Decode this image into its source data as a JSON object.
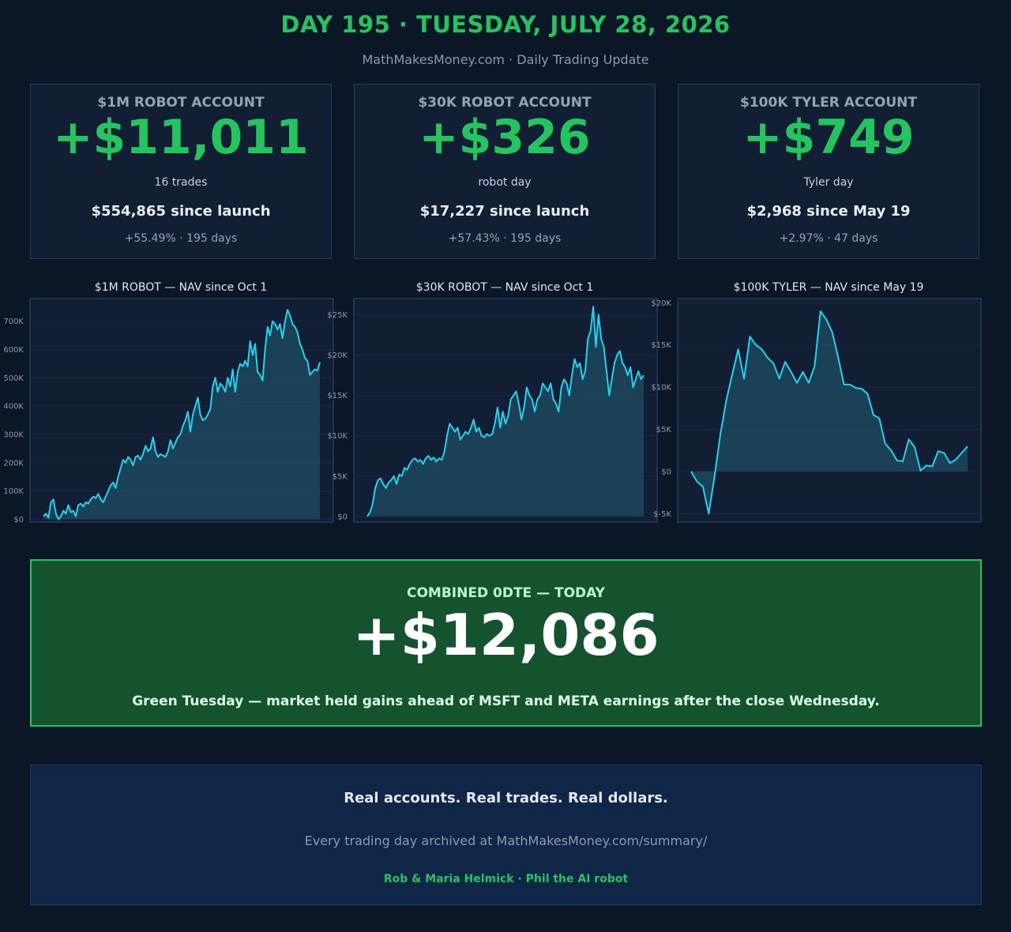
{
  "header": {
    "title": "DAY 195 · TUESDAY, JULY 28, 2026",
    "subtitle": "MathMakesMoney.com  ·  Daily Trading Update"
  },
  "cards": [
    {
      "label": "$1M ROBOT ACCOUNT",
      "amount": "+$11,011",
      "detail": "16 trades",
      "since": "$554,865 since launch",
      "pct": "+55.49% · 195 days"
    },
    {
      "label": "$30K ROBOT ACCOUNT",
      "amount": "+$326",
      "detail": "robot day",
      "since": "$17,227 since launch",
      "pct": "+57.43% · 195 days"
    },
    {
      "label": "$100K TYLER ACCOUNT",
      "amount": "+$749",
      "detail": "Tyler day",
      "since": "$2,968 since May 19",
      "pct": "+2.97% · 47 days"
    }
  ],
  "colors": {
    "line": "#22d3ee",
    "fill": "#1f4d64",
    "positive": "#22c55e",
    "panel_bg": "#111e33",
    "border": "#253c5e"
  },
  "chart_data": [
    {
      "type": "area",
      "title": "$1M ROBOT — NAV since Oct 1",
      "ylim": [
        -10000,
        780000
      ],
      "yticks": [
        0,
        100000,
        200000,
        300000,
        400000,
        500000,
        600000,
        700000
      ],
      "ytick_labels": [
        "$0",
        "100K",
        "200K",
        "300K",
        "400K",
        "500K",
        "600K",
        "700K"
      ],
      "grid": true,
      "series": [
        {
          "values": [
            10000,
            20000,
            5000,
            60000,
            70000,
            20000,
            0,
            10000,
            30000,
            20000,
            50000,
            25000,
            30000,
            10000,
            50000,
            55000,
            45000,
            60000,
            55000,
            70000,
            80000,
            75000,
            90000,
            70000,
            60000,
            80000,
            100000,
            120000,
            130000,
            110000,
            150000,
            180000,
            210000,
            200000,
            220000,
            210000,
            190000,
            220000,
            225000,
            210000,
            230000,
            260000,
            240000,
            250000,
            290000,
            240000,
            220000,
            230000,
            225000,
            220000,
            240000,
            280000,
            250000,
            270000,
            290000,
            300000,
            330000,
            350000,
            380000,
            310000,
            370000,
            400000,
            430000,
            370000,
            350000,
            355000,
            370000,
            390000,
            470000,
            500000,
            450000,
            480000,
            470000,
            450000,
            500000,
            470000,
            530000,
            450000,
            520000,
            550000,
            540000,
            560000,
            540000,
            630000,
            580000,
            620000,
            520000,
            510000,
            490000,
            600000,
            680000,
            650000,
            700000,
            690000,
            670000,
            690000,
            640000,
            700000,
            740000,
            720000,
            690000,
            680000,
            660000,
            620000,
            600000,
            570000,
            560000,
            510000,
            520000,
            530000,
            525000,
            555000
          ]
        }
      ]
    },
    {
      "type": "area",
      "title": "$30K ROBOT — NAV since Oct 1",
      "ylim": [
        -700,
        27000
      ],
      "yticks": [
        0,
        5000,
        10000,
        15000,
        20000,
        25000
      ],
      "ytick_labels": [
        "$0",
        "$5K",
        "$10K",
        "$15K",
        "$20K",
        "$25K"
      ],
      "grid": true,
      "series": [
        {
          "values": [
            0,
            500,
            1500,
            3500,
            4500,
            4700,
            4000,
            3500,
            4200,
            4500,
            5000,
            4000,
            5200,
            5000,
            6000,
            5800,
            6500,
            7000,
            7200,
            6800,
            7000,
            6500,
            7200,
            7500,
            7000,
            7300,
            6800,
            7200,
            7000,
            8000,
            10000,
            11500,
            11000,
            10500,
            11000,
            9500,
            10000,
            10500,
            10200,
            11000,
            12000,
            10500,
            11000,
            10000,
            9800,
            10200,
            10000,
            10200,
            11500,
            13500,
            11000,
            13000,
            11500,
            12500,
            14500,
            15000,
            15500,
            14000,
            12000,
            13500,
            16000,
            15000,
            14500,
            13000,
            14500,
            15000,
            16500,
            16000,
            15500,
            16500,
            14500,
            14000,
            13000,
            16000,
            17000,
            16500,
            15000,
            17500,
            19500,
            18500,
            19000,
            17000,
            18000,
            22000,
            23000,
            26000,
            21000,
            25000,
            22000,
            21000,
            18000,
            15000,
            17000,
            19000,
            20000,
            20500,
            19000,
            18500,
            17500,
            18500,
            16000,
            17000,
            18000,
            17000,
            17500
          ]
        }
      ]
    },
    {
      "type": "area",
      "title": "$100K TYLER — NAV since May 19",
      "ylim": [
        -6000,
        20500
      ],
      "yticks": [
        -5000,
        0,
        5000,
        10000,
        15000,
        20000
      ],
      "ytick_labels": [
        "$-5K",
        "$0",
        "$5K",
        "$10K",
        "$15K",
        "$20K"
      ],
      "grid": true,
      "series": [
        {
          "values": [
            0,
            -1200,
            -1800,
            -5000,
            -500,
            4500,
            8500,
            11500,
            14500,
            11000,
            16000,
            15000,
            14500,
            13500,
            12800,
            11000,
            13000,
            11800,
            10500,
            11800,
            10500,
            12500,
            19000,
            18000,
            16500,
            13500,
            10300,
            10300,
            9900,
            9800,
            9200,
            6700,
            6300,
            3300,
            2500,
            1300,
            1200,
            3800,
            2900,
            100,
            700,
            600,
            2400,
            2200,
            1000,
            1400,
            2200,
            2968
          ]
        }
      ]
    }
  ],
  "combined": {
    "label": "COMBINED 0DTE — TODAY",
    "amount": "+$12,086",
    "note": "Green Tuesday — market held gains ahead of MSFT and META earnings after the close Wednesday."
  },
  "footer": {
    "line1": "Real accounts. Real trades. Real dollars.",
    "line2": "Every trading day archived at MathMakesMoney.com/summary/",
    "line3": "Rob & Maria Helmick  ·  Phil the AI robot"
  }
}
